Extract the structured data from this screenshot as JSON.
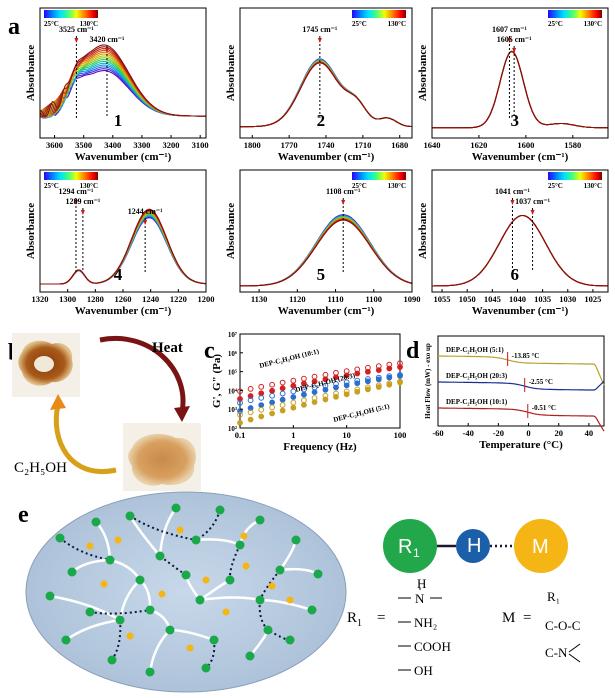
{
  "panel_labels": {
    "a": "a",
    "b": "b",
    "c": "c",
    "d": "d",
    "e": "e"
  },
  "colorbar": {
    "min_label": "25°C",
    "max_label": "130°C",
    "stops": [
      "#2a00ff",
      "#0080ff",
      "#00e0ff",
      "#40ff80",
      "#f0ff00",
      "#ff8000",
      "#ff0000",
      "#800000"
    ]
  },
  "ftir": {
    "series_colors": [
      "#6a00c8",
      "#3a2fd8",
      "#2860e8",
      "#1894e0",
      "#10b8c8",
      "#18c890",
      "#40cc50",
      "#80cc20",
      "#b8c010",
      "#d8a808",
      "#e07a08",
      "#d84a10",
      "#c02818",
      "#a01818",
      "#8a1010"
    ],
    "panels": [
      {
        "id": "1",
        "number": "1",
        "xlabel": "Wavenumber (cm⁻¹)",
        "ylabel": "Absorbance",
        "xlim": [
          3650,
          3080
        ],
        "ticks": [
          3600,
          3500,
          3400,
          3300,
          3200,
          3100
        ],
        "annotations": [
          {
            "text": "3525 cm⁻¹",
            "x": 3525
          },
          {
            "text": "3420 cm⁻¹",
            "x": 3420
          }
        ],
        "peaks": [
          {
            "c": 3430,
            "w": 120,
            "a": 0.55,
            "shift": -0.22
          },
          {
            "c": 3525,
            "w": 40,
            "a": 0.12,
            "shift": -0.05
          }
        ],
        "base": 0.15,
        "baseShift": 0.0
      },
      {
        "id": "2",
        "number": "2",
        "xlabel": "Wavenumber (cm⁻¹)",
        "ylabel": "Absorbance",
        "xlim": [
          1810,
          1670
        ],
        "ticks": [
          1800,
          1770,
          1740,
          1710,
          1680
        ],
        "annotations": [
          {
            "text": "1745 cm⁻¹",
            "x": 1745
          }
        ],
        "peaks": [
          {
            "c": 1745,
            "w": 22,
            "a": 0.62,
            "shift": 0.03
          },
          {
            "c": 1715,
            "w": 12,
            "a": 0.18,
            "shift": 0.0
          },
          {
            "c": 1690,
            "w": 10,
            "a": 0.08,
            "shift": 0.0
          }
        ],
        "base": 0.05,
        "baseShift": 0.0
      },
      {
        "id": "3",
        "number": "3",
        "xlabel": "Wavenumber (cm⁻¹)",
        "ylabel": "Absorbance",
        "xlim": [
          1640,
          1565
        ],
        "ticks": [
          1640,
          1620,
          1600,
          1580
        ],
        "annotations": [
          {
            "text": "1607 cm⁻¹",
            "x": 1607
          },
          {
            "text": "1605 cm⁻¹",
            "x": 1605
          }
        ],
        "peaks": [
          {
            "c": 1606,
            "w": 7,
            "a": 0.72,
            "shift": 0.0
          },
          {
            "c": 1585,
            "w": 8,
            "a": 0.04,
            "shift": 0.0
          }
        ],
        "base": 0.04,
        "baseShift": 0.0
      },
      {
        "id": "4",
        "number": "4",
        "xlabel": "Wavenumber (cm⁻¹)",
        "ylabel": "Absorbance",
        "xlim": [
          1320,
          1200
        ],
        "ticks": [
          1320,
          1300,
          1280,
          1260,
          1240,
          1220,
          1200
        ],
        "annotations": [
          {
            "text": "1294 cm⁻¹",
            "x": 1294
          },
          {
            "text": "1289 cm⁻¹",
            "x": 1289
          },
          {
            "text": "1244 cm⁻¹",
            "x": 1244
          }
        ],
        "peaks": [
          {
            "c": 1241,
            "w": 18,
            "a": 0.72,
            "shift": -0.06
          },
          {
            "c": 1292,
            "w": 6,
            "a": 0.14,
            "shift": -0.03
          }
        ],
        "base": 0.02,
        "baseShift": 0.0
      },
      {
        "id": "5",
        "number": "5",
        "xlabel": "Wavenumber (cm⁻¹)",
        "ylabel": "Absorbance",
        "xlim": [
          1135,
          1090
        ],
        "ticks": [
          1130,
          1120,
          1110,
          1100,
          1090
        ],
        "annotations": [
          {
            "text": "1108 cm⁻¹",
            "x": 1108
          }
        ],
        "peaks": [
          {
            "c": 1108,
            "w": 10,
            "a": 0.7,
            "shift": 0.04
          }
        ],
        "base": 0.0,
        "baseShift": 0.0
      },
      {
        "id": "6",
        "number": "6",
        "xlabel": "Wavenumber (cm⁻¹)",
        "ylabel": "Absorbance",
        "xlim": [
          1057,
          1022
        ],
        "ticks": [
          1055,
          1050,
          1045,
          1040,
          1035,
          1030,
          1025
        ],
        "annotations": [
          {
            "text": "1041 cm⁻¹",
            "x": 1041
          },
          {
            "text": "1037 cm⁻¹",
            "x": 1037
          }
        ],
        "peaks": [
          {
            "c": 1039,
            "w": 6.5,
            "a": 0.72,
            "shift": 0.0
          }
        ],
        "base": 0.0,
        "baseShift": 0.0
      }
    ]
  },
  "panel_b": {
    "heat_label": "Heat",
    "solvent_label": "C₂H₅OH"
  },
  "chart_data": [
    {
      "type": "scatter",
      "xlabel": "Frequency (Hz)",
      "ylabel": "G', G\" (Pa)",
      "xscale": "log",
      "yscale": "log",
      "xlim": [
        0.1,
        100
      ],
      "ylim": [
        100,
        10000000
      ],
      "x_ticks": [
        "0.1",
        "1",
        "10",
        "100"
      ],
      "y_ticks": [
        "10²",
        "10³",
        "10⁴",
        "10⁵",
        "10⁶",
        "10⁷"
      ],
      "series": [
        {
          "name": "DEP-C₂H₅OH (10:1)",
          "color": "#d42020",
          "fill": "hollow",
          "x": [
            0.1,
            0.158,
            0.25,
            0.4,
            0.63,
            1,
            1.58,
            2.5,
            4,
            6.3,
            10,
            15.8,
            25,
            40,
            63,
            100
          ],
          "values": [
            9000,
            12000,
            15500,
            20000,
            26000,
            33000,
            42000,
            54000,
            68000,
            85000,
            105000,
            130000,
            160000,
            195000,
            235000,
            280000
          ]
        },
        {
          "name": "DEP-C₂H₅OH (10:1) G'",
          "color": "#d42020",
          "fill": "filled",
          "x": [
            0.1,
            0.158,
            0.25,
            0.4,
            0.63,
            1,
            1.58,
            2.5,
            4,
            6.3,
            10,
            15.8,
            25,
            40,
            63,
            100
          ],
          "values": [
            3500,
            5000,
            7000,
            9500,
            13000,
            17500,
            23000,
            30000,
            39000,
            50000,
            63000,
            79000,
            98000,
            120000,
            146000,
            175000
          ]
        },
        {
          "name": "DEP-C₂H₅OH (20:3)",
          "color": "#2a6fd0",
          "fill": "hollow",
          "x": [
            0.1,
            0.158,
            0.25,
            0.4,
            0.63,
            1,
            1.58,
            2.5,
            4,
            6.3,
            10,
            15.8,
            25,
            40,
            63,
            100
          ],
          "values": [
            2200,
            3000,
            4000,
            5200,
            6800,
            8800,
            11200,
            14200,
            17800,
            22000,
            27000,
            33000,
            40000,
            48000,
            57000,
            67000
          ]
        },
        {
          "name": "DEP-C₂H₅OH (20:3) G'",
          "color": "#2a6fd0",
          "fill": "filled",
          "x": [
            0.1,
            0.158,
            0.25,
            0.4,
            0.63,
            1,
            1.58,
            2.5,
            4,
            6.3,
            10,
            15.8,
            25,
            40,
            63,
            100
          ],
          "values": [
            800,
            1150,
            1650,
            2300,
            3200,
            4400,
            6000,
            8100,
            10800,
            14200,
            18500,
            24000,
            30500,
            38500,
            48000,
            59000
          ]
        },
        {
          "name": "DEP-C₂H₅OH (5:1)",
          "color": "#c8a020",
          "fill": "hollow",
          "x": [
            0.1,
            0.158,
            0.25,
            0.4,
            0.63,
            1,
            1.58,
            2.5,
            4,
            6.3,
            10,
            15.8,
            25,
            40,
            63,
            100
          ],
          "values": [
            500,
            680,
            920,
            1250,
            1680,
            2250,
            3000,
            3950,
            5200,
            6800,
            8800,
            11300,
            14500,
            18500,
            23500,
            29500
          ]
        },
        {
          "name": "DEP-C₂H₅OH (5:1) G'",
          "color": "#c8a020",
          "fill": "filled",
          "x": [
            0.1,
            0.158,
            0.25,
            0.4,
            0.63,
            1,
            1.58,
            2.5,
            4,
            6.3,
            10,
            15.8,
            25,
            40,
            63,
            100
          ],
          "values": [
            190,
            280,
            410,
            590,
            850,
            1200,
            1700,
            2380,
            3300,
            4550,
            6200,
            8400,
            11300,
            15100,
            20000,
            26300
          ]
        }
      ],
      "annotations": [
        "DEP-C₂H₅OH (10:1)",
        "DEP-C₂H₅OH (20:3)",
        "DEP-C₂H₅OH (5:1)"
      ]
    },
    {
      "type": "line",
      "xlabel": "Temperature (°C)",
      "ylabel": "Heat Flow (mW) - exo up",
      "xlim": [
        -60,
        50
      ],
      "x_ticks": [
        -60,
        -40,
        -20,
        0,
        20,
        40
      ],
      "series": [
        {
          "name": "DEP-C₂H₅OH (5:1)",
          "color": "#b8a030",
          "tg": "-13.85 °C",
          "tg_x": -13.85,
          "offset": 2.0
        },
        {
          "name": "DEP-C₂H₅OH (20:3)",
          "color": "#1a2f90",
          "tg": "-2.55 °C",
          "tg_x": -2.55,
          "offset": 1.0
        },
        {
          "name": "DEP-C₂H₅OH (10:1)",
          "color": "#b02020",
          "tg": "-0.51 °C",
          "tg_x": -0.51,
          "offset": 0.0
        }
      ]
    }
  ],
  "panel_e": {
    "r1_label": "R",
    "r1_sub": "1",
    "h_label": "H",
    "m_label": "M",
    "r1_options": [
      "H",
      "N",
      "NH₂",
      "COOH",
      "OH"
    ],
    "m_options": [
      "R₁",
      "C-O-C",
      "C-N"
    ],
    "eq": "="
  },
  "rheo_label_font_note": "",
  "colors": {
    "node_green": "#1aa84a",
    "node_yellow": "#f5b512",
    "ellipse_fill": "#b8cce0",
    "r1_green": "#22a84a",
    "h_blue": "#1a5fa8",
    "m_yellow": "#f5b515"
  }
}
